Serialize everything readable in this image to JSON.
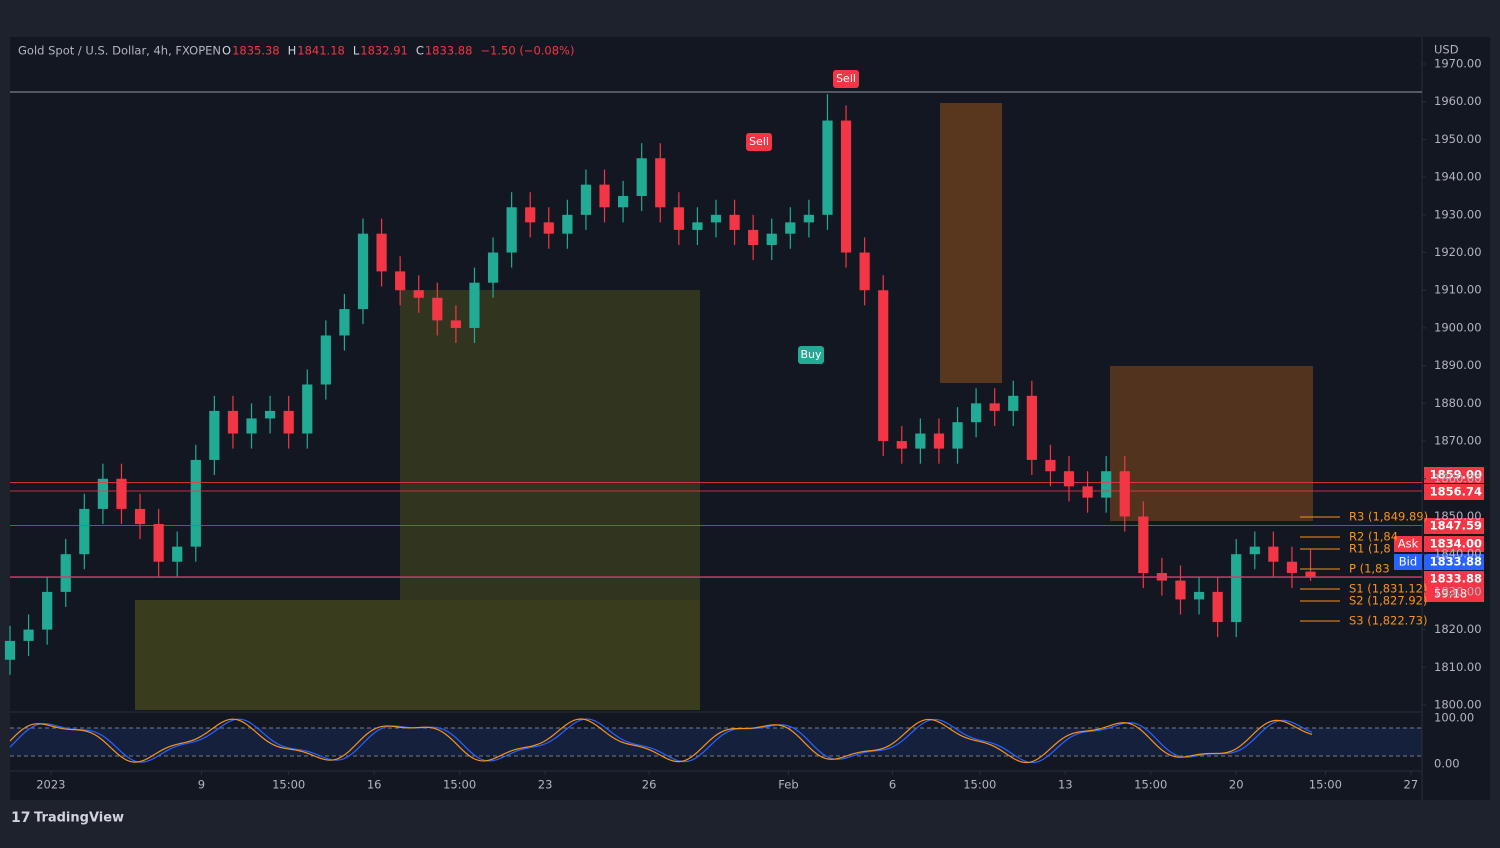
{
  "chart_data": {
    "type": "candlestick",
    "symbol": "Gold Spot / U.S. Dollar, 4h, FXOPEN",
    "ohlc_labels": [
      "O",
      "H",
      "L",
      "C"
    ],
    "ohlc_values": [
      1835.38,
      1841.18,
      1832.91,
      1833.88
    ],
    "change": "−1.50 (−0.08%)",
    "currency": "USD",
    "brand": "TradingView",
    "up_color": "#22ab94",
    "down_color": "#f23645",
    "open": [
      1812,
      1817,
      1820,
      1830,
      1840,
      1852,
      1860,
      1852,
      1848,
      1838,
      1842,
      1865,
      1878,
      1872,
      1876,
      1878,
      1872,
      1885,
      1898,
      1905,
      1925,
      1915,
      1910,
      1908,
      1902,
      1900,
      1912,
      1920,
      1932,
      1928,
      1925,
      1930,
      1938,
      1932,
      1935,
      1945,
      1932,
      1926,
      1928,
      1930,
      1926,
      1922,
      1925,
      1928,
      1930,
      1955,
      1920,
      1910,
      1870,
      1868,
      1872,
      1868,
      1875,
      1880,
      1878,
      1882,
      1865,
      1862,
      1858,
      1855,
      1862,
      1850,
      1835,
      1833,
      1828,
      1830,
      1822,
      1840,
      1842,
      1838,
      1835.38
    ],
    "high": [
      1821,
      1824,
      1834,
      1844,
      1856,
      1864,
      1864,
      1856,
      1852,
      1846,
      1869,
      1882,
      1882,
      1880,
      1882,
      1882,
      1889,
      1902,
      1909,
      1929,
      1929,
      1919,
      1914,
      1912,
      1906,
      1916,
      1924,
      1936,
      1936,
      1932,
      1934,
      1942,
      1942,
      1939,
      1949,
      1949,
      1936,
      1932,
      1934,
      1934,
      1930,
      1929,
      1932,
      1934,
      1962,
      1959,
      1924,
      1914,
      1874,
      1876,
      1876,
      1879,
      1884,
      1884,
      1886,
      1886,
      1869,
      1866,
      1862,
      1866,
      1866,
      1854,
      1839,
      1837,
      1834,
      1834,
      1844,
      1846,
      1846,
      1842,
      1841.18
    ],
    "low": [
      1808,
      1813,
      1816,
      1826,
      1836,
      1848,
      1848,
      1844,
      1834,
      1834,
      1838,
      1861,
      1868,
      1868,
      1872,
      1868,
      1868,
      1881,
      1894,
      1901,
      1911,
      1906,
      1904,
      1898,
      1896,
      1896,
      1908,
      1916,
      1924,
      1921,
      1921,
      1926,
      1928,
      1928,
      1931,
      1928,
      1922,
      1922,
      1924,
      1922,
      1918,
      1918,
      1921,
      1924,
      1926,
      1916,
      1906,
      1866,
      1864,
      1864,
      1864,
      1864,
      1871,
      1874,
      1874,
      1861,
      1858,
      1854,
      1851,
      1851,
      1846,
      1831,
      1829,
      1824,
      1824,
      1818,
      1818,
      1836,
      1834,
      1831,
      1832.91
    ],
    "close": [
      1817,
      1820,
      1830,
      1840,
      1852,
      1860,
      1852,
      1848,
      1838,
      1842,
      1865,
      1878,
      1872,
      1876,
      1878,
      1872,
      1885,
      1898,
      1905,
      1925,
      1915,
      1910,
      1908,
      1902,
      1900,
      1912,
      1920,
      1932,
      1928,
      1925,
      1930,
      1938,
      1932,
      1935,
      1945,
      1932,
      1926,
      1928,
      1930,
      1926,
      1922,
      1925,
      1928,
      1930,
      1955,
      1920,
      1910,
      1870,
      1868,
      1872,
      1868,
      1875,
      1880,
      1878,
      1882,
      1865,
      1862,
      1858,
      1855,
      1862,
      1850,
      1835,
      1833,
      1828,
      1830,
      1822,
      1840,
      1842,
      1838,
      1835,
      1833.88
    ],
    "xlim": [
      0,
      76
    ],
    "xticks": [
      {
        "value": 2.2,
        "label": "2023"
      },
      {
        "value": 10.3,
        "label": "9"
      },
      {
        "value": 15,
        "label": "15:00"
      },
      {
        "value": 19.6,
        "label": "16"
      },
      {
        "value": 24.2,
        "label": "15:00"
      },
      {
        "value": 28.8,
        "label": "23"
      },
      {
        "value": 34.4,
        "label": "26"
      },
      {
        "value": 41.9,
        "label": "Feb"
      },
      {
        "value": 47.5,
        "label": "6"
      },
      {
        "value": 52.2,
        "label": "15:00"
      },
      {
        "value": 56.8,
        "label": "13"
      },
      {
        "value": 61.4,
        "label": "15:00"
      },
      {
        "value": 66,
        "label": "20"
      },
      {
        "value": 70.8,
        "label": "15:00"
      },
      {
        "value": 75.4,
        "label": "27"
      }
    ],
    "ylim": [
      1800,
      1970
    ],
    "yticks": [
      {
        "value": 1800,
        "label": "1800.00"
      },
      {
        "value": 1810,
        "label": "1810.00"
      },
      {
        "value": 1820,
        "label": "1820.00"
      },
      {
        "value": 1830,
        "label": "1830.00"
      },
      {
        "value": 1840,
        "label": "1840.00"
      },
      {
        "value": 1850,
        "label": "1850.00"
      },
      {
        "value": 1860,
        "label": "1860.00"
      },
      {
        "value": 1870,
        "label": "1870.00"
      },
      {
        "value": 1880,
        "label": "1880.00"
      },
      {
        "value": 1890,
        "label": "1890.00"
      },
      {
        "value": 1900,
        "label": "1900.00"
      },
      {
        "value": 1910,
        "label": "1910.00"
      },
      {
        "value": 1920,
        "label": "1920.00"
      },
      {
        "value": 1930,
        "label": "1930.00"
      },
      {
        "value": 1940,
        "label": "1940.00"
      },
      {
        "value": 1950,
        "label": "1950.00"
      },
      {
        "value": 1960,
        "label": "1960.00"
      },
      {
        "value": 1970,
        "label": "1970.00"
      }
    ],
    "price_tags": [
      {
        "value": 1859,
        "label": "1859.00",
        "color": "#f23645"
      },
      {
        "value": 1856.74,
        "label": "1856.74",
        "color": "#f23645"
      },
      {
        "value": 1847.59,
        "label": "1847.59",
        "color": "#f23645"
      },
      {
        "value": 1834,
        "label": "1834.00",
        "color": "#f23645"
      },
      {
        "value": 1833.88,
        "label": "1833.88",
        "color": "#2962ff"
      },
      {
        "value": 1833.88,
        "label": "1833.88",
        "color": "#f23645"
      }
    ],
    "countdown": "59:18",
    "quote_labels": [
      "Ask",
      "Bid"
    ],
    "pivots": [
      "R3 (1,849.89)",
      "R2 (1,84",
      "R1 (1,8",
      "P (1,83",
      "S1 (1,831.12)",
      "S2 (1,827.92)",
      "S3 (1,822.73)"
    ],
    "signals": [
      "Sell",
      "Sell",
      "Buy"
    ],
    "oscillator_ylim": [
      0,
      100
    ],
    "oscillator_yticks": [
      {
        "value": 100,
        "label": "100.00"
      },
      {
        "value": 0,
        "label": "0.00"
      }
    ]
  }
}
